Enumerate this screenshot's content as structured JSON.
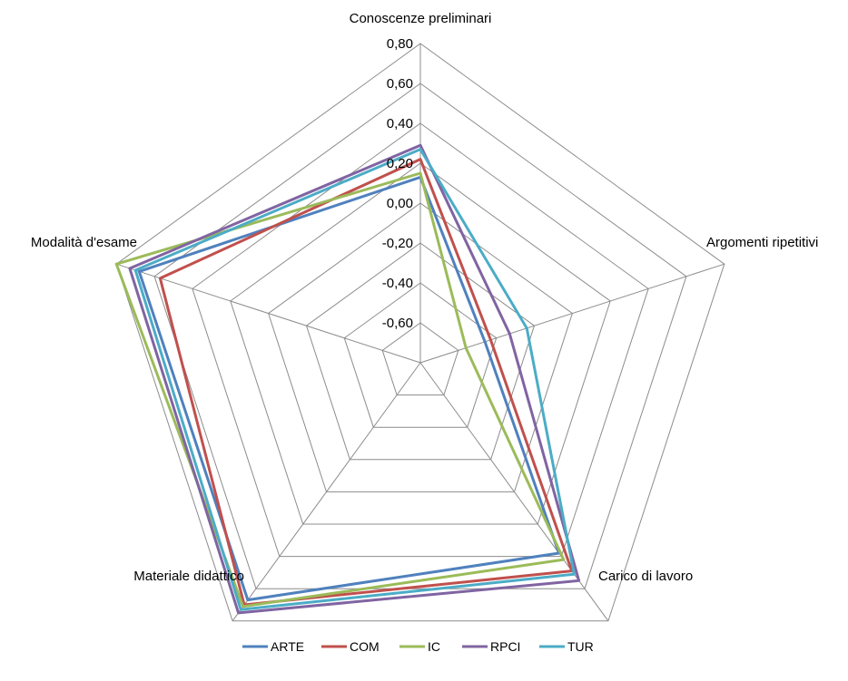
{
  "chart_data": {
    "type": "radar",
    "axes": [
      "Conoscenze preliminari",
      "Argomenti ripetitivi",
      "Carico di lavoro",
      "Materiale didattico",
      "Modalità d'esame"
    ],
    "rlim": [
      -0.8,
      0.8
    ],
    "ticks": [
      -0.6,
      -0.4,
      -0.2,
      0.0,
      0.2,
      0.4,
      0.6,
      0.8
    ],
    "tick_labels": [
      "-0,60",
      "-0,40",
      "-0,20",
      "0,00",
      "0,20",
      "0,40",
      "0,60",
      "0,80"
    ],
    "grid": true,
    "legend_position": "bottom",
    "series": [
      {
        "name": "ARTE",
        "color": "#4f81bd",
        "values": [
          0.13,
          -0.46,
          0.38,
          0.67,
          0.68
        ]
      },
      {
        "name": "COM",
        "color": "#c0504d",
        "values": [
          0.22,
          -0.43,
          0.49,
          0.7,
          0.57
        ]
      },
      {
        "name": "IC",
        "color": "#9bbb59",
        "values": [
          0.15,
          -0.56,
          0.42,
          0.71,
          0.8
        ]
      },
      {
        "name": "RPCI",
        "color": "#8064a2",
        "values": [
          0.29,
          -0.33,
          0.55,
          0.75,
          0.73
        ]
      },
      {
        "name": "TUR",
        "color": "#4bacc6",
        "values": [
          0.27,
          -0.24,
          0.51,
          0.73,
          0.7
        ]
      }
    ]
  }
}
